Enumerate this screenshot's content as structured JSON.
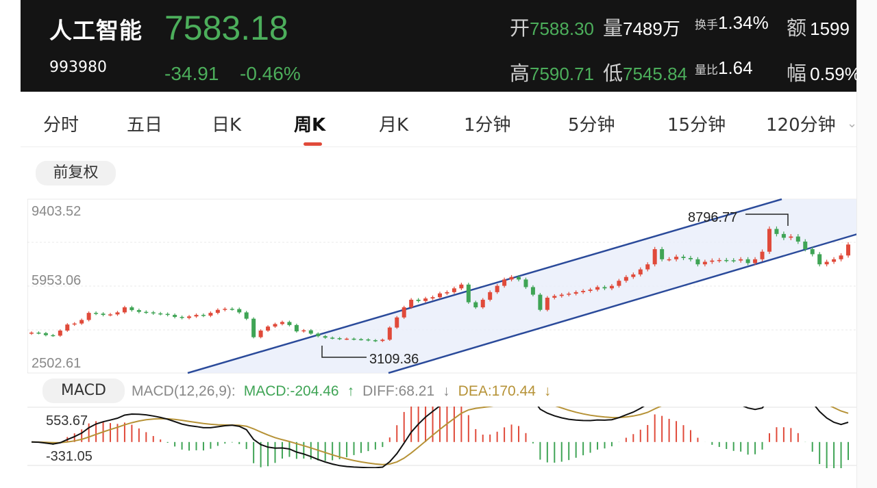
{
  "header": {
    "name": "人工智能",
    "code": "993980",
    "price": "7583.18",
    "change": "-34.91",
    "change_pct": "-0.46%",
    "stats": {
      "open": {
        "label": "开",
        "value": "7588.30"
      },
      "volume": {
        "label": "量",
        "value": "7489万"
      },
      "turnover": {
        "label": "换手",
        "value": "1.34%"
      },
      "amount": {
        "label": "额",
        "value": "1599"
      },
      "high": {
        "label": "高",
        "value": "7590.71"
      },
      "low": {
        "label": "低",
        "value": "7545.84"
      },
      "volume_ratio": {
        "label": "量比",
        "value": "1.64"
      },
      "amplitude": {
        "label": "幅",
        "value": "0.59%"
      }
    }
  },
  "tabs": [
    {
      "label": "分时"
    },
    {
      "label": "五日"
    },
    {
      "label": "日K"
    },
    {
      "label": "周K",
      "active": true
    },
    {
      "label": "月K"
    },
    {
      "label": "1分钟"
    },
    {
      "label": "5分钟"
    },
    {
      "label": "15分钟"
    },
    {
      "label": "120分钟"
    }
  ],
  "adjust_label": "前复权",
  "kchart": {
    "y_labels": [
      "9403.52",
      "5953.06",
      "2502.61"
    ],
    "annotations": {
      "low": "3109.36",
      "high": "8796.77"
    }
  },
  "macd": {
    "label": "MACD",
    "legend": {
      "params": "MACD(12,26,9):",
      "macd": "MACD:-204.46",
      "diff": "DIFF:68.21",
      "dea": "DEA:170.44"
    },
    "y_labels": [
      "553.67",
      "-331.05"
    ]
  },
  "colors": {
    "up": "#e04a3a",
    "down": "#3fa455",
    "channel": "#2a4a9a",
    "diff": "#111111",
    "dea": "#b69236"
  },
  "chart_data": {
    "type": "candlestick",
    "approx_weekly_closes": [
      4100,
      4080,
      4000,
      3980,
      4180,
      4420,
      4460,
      4600,
      4880,
      4850,
      4800,
      4820,
      4900,
      5100,
      4990,
      4920,
      4900,
      4860,
      4840,
      4800,
      4720,
      4680,
      4740,
      4800,
      4770,
      4880,
      5000,
      5040,
      5030,
      4900,
      4650,
      3920,
      4180,
      4340,
      4440,
      4520,
      4400,
      4150,
      4190,
      4060,
      3960,
      3900,
      3880,
      3850,
      3860,
      3840,
      3830,
      3800,
      3770,
      3820,
      4300,
      4700,
      5100,
      5400,
      5350,
      5450,
      5500,
      5650,
      5700,
      5850,
      6000,
      5300,
      5100,
      5400,
      5700,
      5950,
      6200,
      6300,
      6200,
      5900,
      5600,
      5000,
      5480,
      5550,
      5600,
      5640,
      5700,
      5750,
      5800,
      5900,
      5850,
      5950,
      6150,
      6300,
      6400,
      6600,
      6800,
      7400,
      7000,
      7000,
      7100,
      7050,
      7000,
      6800,
      6900,
      6950,
      6970,
      6960,
      6950,
      7000,
      6850,
      7000,
      7300,
      8200,
      8000,
      7850,
      7900,
      7700,
      7400,
      7200,
      6800,
      6900,
      7000,
      7150,
      7583.18
    ],
    "y_labels": [
      9403.52,
      5953.06,
      2502.61
    ],
    "annotations": [
      {
        "label": "3109.36"
      },
      {
        "label": "8796.77"
      }
    ]
  }
}
